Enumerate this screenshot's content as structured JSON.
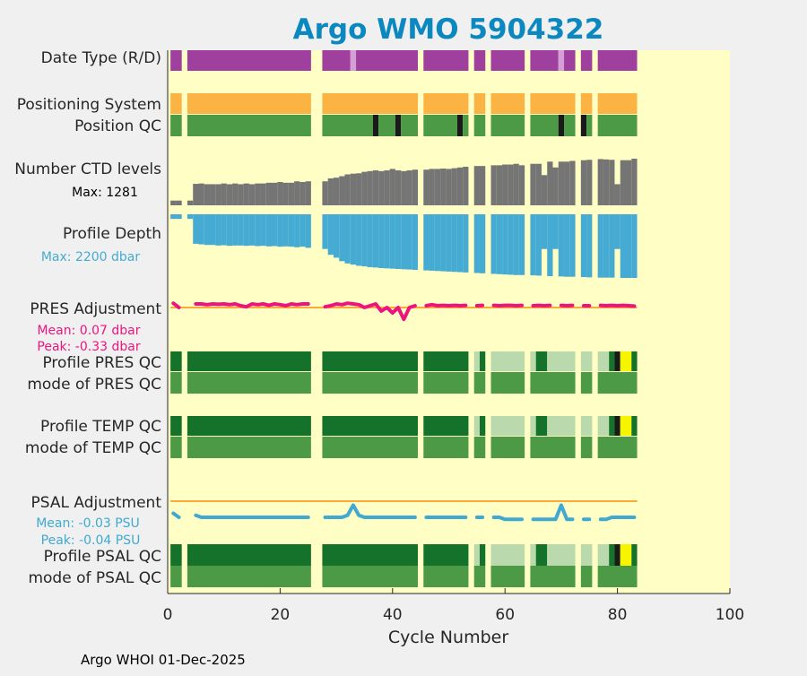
{
  "chart_data": {
    "type": "bar",
    "title": "Argo WMO 5904322",
    "xlabel": "Cycle Number",
    "xlim": [
      0,
      100
    ],
    "xticks": [
      "0",
      "20",
      "40",
      "60",
      "80",
      "100"
    ],
    "footer": "Argo WHOI 01-Dec-2025",
    "rows": {
      "date_type": "Date Type (R/D)",
      "positioning": "Positioning System",
      "position_qc": "Position QC",
      "ctd_levels": "Number CTD levels",
      "ctd_max": "Max: 1281",
      "profile_depth": "Profile Depth",
      "depth_max": "Max: 2200 dbar",
      "pres_adj": "PRES Adjustment",
      "pres_mean": "Mean: 0.07 dbar",
      "pres_peak": "Peak: -0.33 dbar",
      "profile_pres_qc": "Profile PRES QC",
      "mode_pres_qc": "mode of PRES QC",
      "profile_temp_qc": "Profile TEMP QC",
      "mode_temp_qc": "mode of TEMP QC",
      "psal_adj": "PSAL Adjustment",
      "psal_mean": "Mean: -0.03 PSU",
      "psal_peak": "Peak: -0.04 PSU",
      "profile_psal_qc": "Profile PSAL QC",
      "mode_psal_qc": "mode of PSAL QC"
    },
    "max_cycle": 83,
    "missing_cycles": [
      3,
      26,
      27,
      45,
      54,
      57,
      64,
      73,
      76
    ],
    "date_type_light_cycles": [
      33,
      70
    ],
    "position_qc_bad_cycles": [
      37,
      41,
      52,
      70,
      74
    ],
    "ctd_levels_max": 1281,
    "ctd_levels": [
      130,
      130,
      0,
      130,
      590,
      600,
      580,
      580,
      580,
      600,
      580,
      600,
      580,
      600,
      580,
      600,
      600,
      620,
      620,
      640,
      620,
      620,
      660,
      640,
      660,
      0,
      0,
      660,
      740,
      760,
      800,
      850,
      870,
      880,
      920,
      940,
      960,
      940,
      960,
      1000,
      960,
      940,
      960,
      980,
      0,
      980,
      1000,
      1000,
      1010,
      1000,
      1020,
      1040,
      1060,
      0,
      1080,
      1080,
      0,
      1100,
      1100,
      1120,
      1120,
      1140,
      1100,
      0,
      1140,
      1140,
      830,
      1200,
      1040,
      1200,
      1200,
      1220,
      0,
      1240,
      1250,
      0,
      1270,
      1260,
      1250,
      580,
      1240,
      1240,
      1281
    ],
    "depth_max_dbar": 2200,
    "profile_depth": [
      160,
      160,
      0,
      160,
      1020,
      1040,
      1060,
      1060,
      1080,
      1070,
      1090,
      1080,
      1080,
      1090,
      1080,
      1100,
      1090,
      1110,
      1100,
      1120,
      1110,
      1120,
      1140,
      1120,
      1160,
      0,
      0,
      1200,
      1400,
      1500,
      1620,
      1700,
      1740,
      1780,
      1800,
      1830,
      1840,
      1860,
      1870,
      1880,
      1890,
      1900,
      1910,
      1920,
      0,
      1940,
      1950,
      1960,
      1970,
      1980,
      1990,
      2000,
      2010,
      0,
      2030,
      2040,
      0,
      2060,
      2070,
      2080,
      2090,
      2100,
      2100,
      0,
      2110,
      2120,
      1200,
      2140,
      1200,
      2150,
      2160,
      2160,
      0,
      2170,
      2180,
      0,
      2190,
      2190,
      2190,
      1200,
      2200,
      2200,
      2200
    ],
    "pres_adjustment": [
      0.12,
      0.0,
      null,
      null,
      0.1,
      0.1,
      0.08,
      0.1,
      0.09,
      0.1,
      0.08,
      0.1,
      0.05,
      0.02,
      0.1,
      0.08,
      0.1,
      0.06,
      0.1,
      0.08,
      0.05,
      0.1,
      0.08,
      0.1,
      0.1,
      null,
      null,
      0.02,
      0.05,
      0.1,
      0.08,
      0.12,
      0.1,
      0.08,
      0.0,
      0.05,
      0.1,
      -0.1,
      0.0,
      -0.15,
      0.0,
      -0.33,
      0.0,
      0.05,
      null,
      0.05,
      0.08,
      0.05,
      0.06,
      0.05,
      0.06,
      0.05,
      0.06,
      null,
      0.05,
      0.06,
      null,
      0.06,
      0.05,
      0.06,
      0.06,
      0.05,
      0.06,
      null,
      0.05,
      0.06,
      0.05,
      0.06,
      null,
      0.06,
      0.05,
      0.06,
      null,
      0.05,
      0.05,
      null,
      0.06,
      0.05,
      0.06,
      0.05,
      0.06,
      0.05,
      0.04
    ],
    "psal_adjustment": [
      -0.03,
      -0.04,
      null,
      null,
      -0.035,
      -0.04,
      -0.04,
      -0.04,
      -0.04,
      -0.04,
      -0.04,
      -0.04,
      -0.04,
      -0.04,
      -0.04,
      -0.04,
      -0.04,
      -0.04,
      -0.04,
      -0.04,
      -0.04,
      -0.04,
      -0.04,
      -0.04,
      -0.04,
      null,
      null,
      -0.04,
      -0.04,
      -0.04,
      -0.04,
      -0.035,
      -0.01,
      -0.035,
      -0.04,
      -0.04,
      -0.04,
      -0.04,
      -0.04,
      -0.04,
      -0.04,
      -0.04,
      -0.04,
      -0.04,
      null,
      -0.04,
      -0.04,
      -0.04,
      -0.04,
      -0.04,
      -0.04,
      -0.04,
      -0.04,
      null,
      -0.04,
      -0.04,
      null,
      -0.04,
      -0.04,
      -0.045,
      -0.045,
      -0.045,
      -0.045,
      null,
      -0.045,
      -0.045,
      -0.045,
      -0.045,
      -0.045,
      -0.01,
      -0.045,
      -0.045,
      null,
      -0.045,
      -0.045,
      null,
      -0.045,
      -0.045,
      -0.04,
      -0.04,
      -0.04,
      -0.04,
      -0.04
    ],
    "profile_qc_light_cycles": [
      55,
      58,
      59,
      60,
      61,
      62,
      63,
      65,
      68,
      69,
      70,
      71,
      72,
      74,
      75,
      77,
      78
    ],
    "profile_qc_dark_cycles": [
      80
    ],
    "profile_qc_yellow_cycles": [
      81,
      82
    ],
    "colors": {
      "title": "#0a88bf",
      "background": "#ffffc5",
      "date_type": "#a0409e",
      "date_type_light": "#d39fd6",
      "positioning": "#fbb444",
      "qc_good": "#4c9a46",
      "qc_dark": "#1a1a1a",
      "ctd": "#757575",
      "depth": "#45abd2",
      "pres_line": "#ee1480",
      "zero_line": "#fbaa3a",
      "profile_qc_good": "#15722a",
      "profile_qc_light": "#bad9ac",
      "profile_qc_yellow": "#f5f500",
      "psal_line": "#3fa9d1"
    }
  }
}
